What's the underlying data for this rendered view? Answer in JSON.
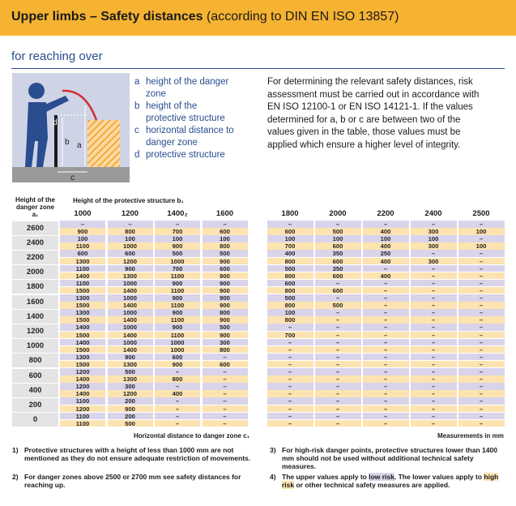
{
  "header": {
    "title": "Upper limbs – Safety distances",
    "subtitle": "(according to DIN EN ISO 13857)"
  },
  "section": "for reaching over",
  "figure": {
    "labels": [
      "b",
      "a",
      "c",
      "d"
    ]
  },
  "legend": [
    {
      "key": "a",
      "text": "height of the danger zone"
    },
    {
      "key": "b",
      "text": "height of the protective structure"
    },
    {
      "key": "c",
      "text": "horizontal distance to danger zone"
    },
    {
      "key": "d",
      "text": "protective structure"
    }
  ],
  "intro": "For determining the relevant safety distances, risk assessment must be carried out in accordance with EN ISO 12100-1 or EN ISO 14121-1. If the values determined for a, b or c are between two of the values given in the table, those values must be applied which ensure a higher level of integrity.",
  "table": {
    "row_header": "Height of the danger zone a₁",
    "column_header": "Height of the protective structure b₁",
    "columns": [
      "1000",
      "1200",
      "1400₂",
      "1600",
      "1800",
      "2000",
      "2200",
      "2400",
      "2500"
    ],
    "rows": [
      {
        "label": "2600",
        "upper": [
          "–",
          "–",
          "–",
          "–",
          "–",
          "–",
          "–",
          "–",
          "–"
        ],
        "lower": [
          900,
          800,
          700,
          600,
          600,
          500,
          400,
          300,
          100
        ]
      },
      {
        "label": "2400",
        "upper": [
          100,
          100,
          100,
          100,
          100,
          100,
          100,
          100,
          "–"
        ],
        "lower": [
          1100,
          1000,
          900,
          800,
          700,
          600,
          400,
          300,
          100
        ]
      },
      {
        "label": "2200",
        "upper": [
          600,
          600,
          500,
          500,
          400,
          350,
          250,
          "–",
          "–"
        ],
        "lower": [
          1300,
          1200,
          1000,
          900,
          800,
          600,
          400,
          300,
          "–"
        ]
      },
      {
        "label": "2000",
        "upper": [
          1100,
          900,
          700,
          600,
          500,
          350,
          "–",
          "–",
          "–"
        ],
        "lower": [
          1400,
          1300,
          1100,
          900,
          800,
          600,
          400,
          "–",
          "–"
        ]
      },
      {
        "label": "1800",
        "upper": [
          1100,
          1000,
          900,
          900,
          600,
          "–",
          "–",
          "–",
          "–"
        ],
        "lower": [
          1500,
          1400,
          1100,
          900,
          800,
          600,
          "–",
          "–",
          "–"
        ]
      },
      {
        "label": "1600",
        "upper": [
          1300,
          1000,
          900,
          900,
          500,
          "–",
          "–",
          "–",
          "–"
        ],
        "lower": [
          1500,
          1400,
          1100,
          900,
          800,
          500,
          "–",
          "–",
          "–"
        ]
      },
      {
        "label": "1400",
        "upper": [
          1300,
          1000,
          900,
          800,
          100,
          "–",
          "–",
          "–",
          "–"
        ],
        "lower": [
          1500,
          1400,
          1100,
          900,
          800,
          "–",
          "–",
          "–",
          "–"
        ]
      },
      {
        "label": "1200",
        "upper": [
          1400,
          1000,
          900,
          500,
          "–",
          "–",
          "–",
          "–",
          "–"
        ],
        "lower": [
          1500,
          1400,
          1100,
          900,
          700,
          "–",
          "–",
          "–",
          "–"
        ]
      },
      {
        "label": "1000",
        "upper": [
          1400,
          1000,
          1000,
          300,
          "–",
          "–",
          "–",
          "–",
          "–"
        ],
        "lower": [
          1500,
          1400,
          1000,
          800,
          "–",
          "–",
          "–",
          "–",
          "–"
        ]
      },
      {
        "label": "800",
        "upper": [
          1300,
          900,
          600,
          "–",
          "–",
          "–",
          "–",
          "–",
          "–"
        ],
        "lower": [
          1500,
          1300,
          900,
          600,
          "–",
          "–",
          "–",
          "–",
          "–"
        ]
      },
      {
        "label": "600",
        "upper": [
          1200,
          500,
          "–",
          "–",
          "–",
          "–",
          "–",
          "–",
          "–"
        ],
        "lower": [
          1400,
          1300,
          800,
          "–",
          "–",
          "–",
          "–",
          "–",
          "–"
        ]
      },
      {
        "label": "400",
        "upper": [
          1200,
          300,
          "–",
          "–",
          "–",
          "–",
          "–",
          "–",
          "–"
        ],
        "lower": [
          1400,
          1200,
          400,
          "–",
          "–",
          "–",
          "–",
          "–",
          "–"
        ]
      },
      {
        "label": "200",
        "upper": [
          1100,
          200,
          "–",
          "–",
          "–",
          "–",
          "–",
          "–",
          "–"
        ],
        "lower": [
          1200,
          900,
          "–",
          "–",
          "–",
          "–",
          "–",
          "–",
          "–"
        ]
      },
      {
        "label": "0",
        "upper": [
          1100,
          200,
          "–",
          "–",
          "–",
          "–",
          "–",
          "–",
          "–"
        ],
        "lower": [
          1100,
          500,
          "–",
          "–",
          "–",
          "–",
          "–",
          "–",
          "–"
        ]
      }
    ]
  },
  "x_axis_label": "Horizontal distance to danger zone c₁",
  "units": "Measurements in mm",
  "notes": [
    {
      "num": "1)",
      "parts": [
        "Protective structures with a height of less than 1000 mm are not mentioned as they do not ensure adequate restriction of movements."
      ]
    },
    {
      "num": "2)",
      "parts": [
        "For danger zones above 2500 or 2700 mm see safety distances for reaching up."
      ]
    },
    {
      "num": "3)",
      "parts": [
        "For high-risk danger points, protective structures lower than 1400 mm should not be used without additional technical safety measures."
      ]
    },
    {
      "num": "4)",
      "parts": [
        "The upper values apply to ",
        "low risk",
        ". The lower values apply to ",
        "high risk",
        " or other technical safety measures are applied."
      ]
    }
  ]
}
